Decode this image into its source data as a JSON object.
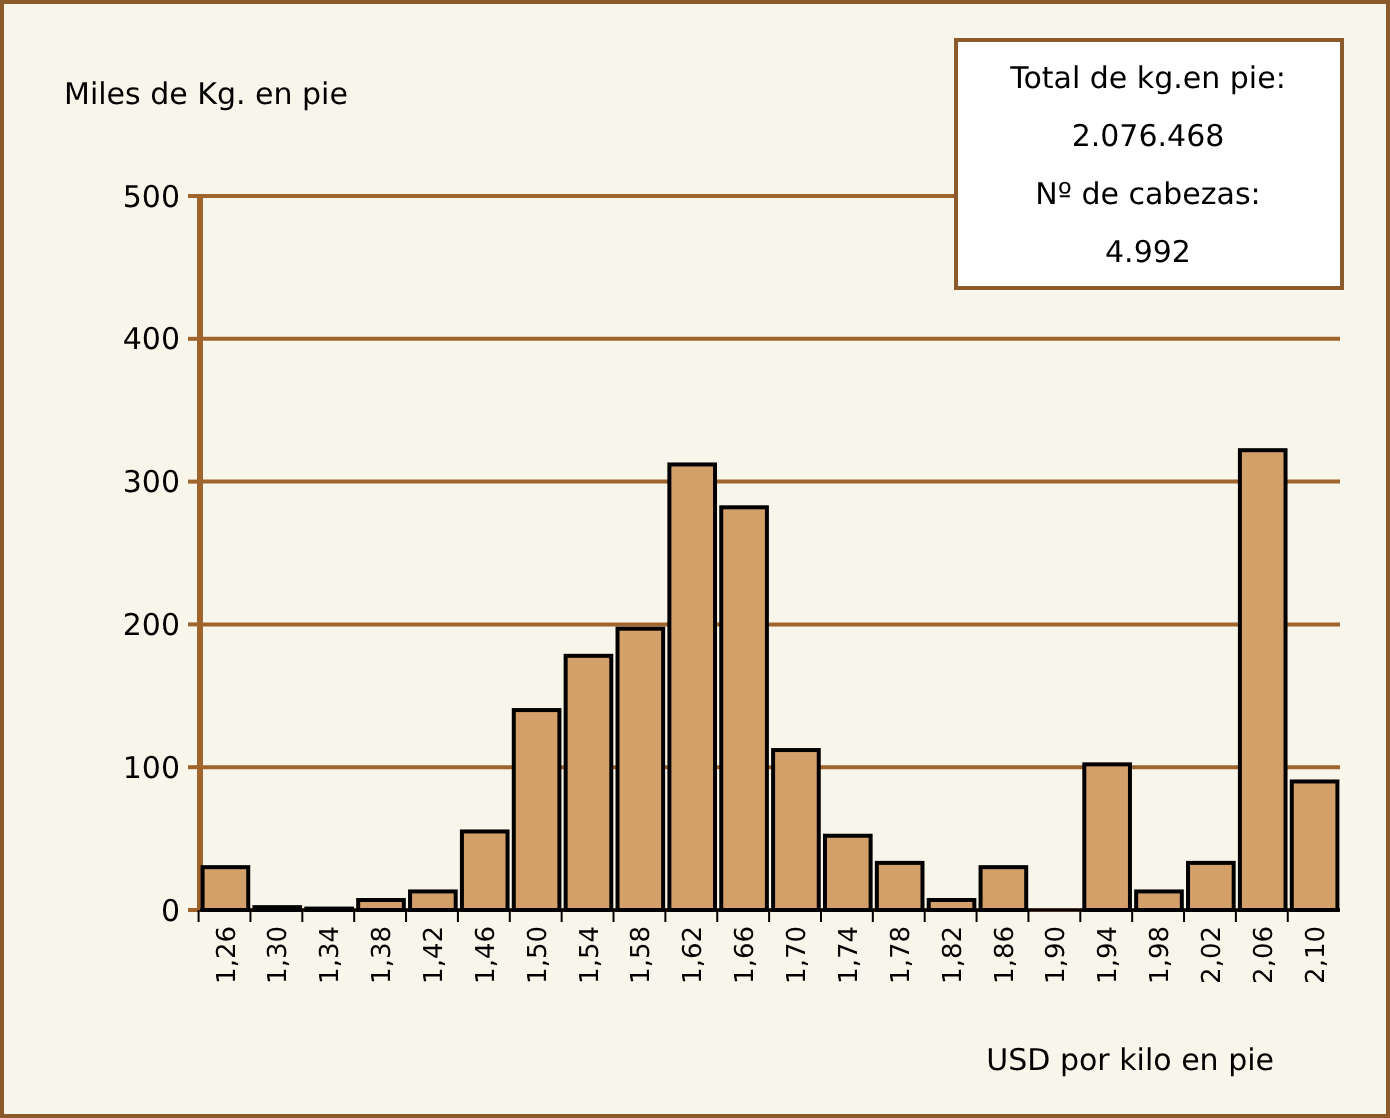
{
  "chart_data": {
    "type": "bar",
    "ylabel": "Miles de Kg. en pie",
    "xlabel": "USD por kilo en pie",
    "categories": [
      "1,26",
      "1,30",
      "1,34",
      "1,38",
      "1,42",
      "1,46",
      "1,50",
      "1,54",
      "1,58",
      "1,62",
      "1,66",
      "1,70",
      "1,74",
      "1,78",
      "1,82",
      "1,86",
      "1,90",
      "1,94",
      "1,98",
      "2,02",
      "2,06",
      "2,10"
    ],
    "values": [
      30,
      2,
      1,
      7,
      13,
      55,
      140,
      178,
      197,
      312,
      282,
      112,
      52,
      33,
      7,
      30,
      0,
      102,
      13,
      33,
      322,
      90
    ],
    "color": "#d4a06a",
    "ylim": [
      0,
      500
    ],
    "yticks": [
      0,
      100,
      200,
      300,
      400,
      500
    ],
    "grid": "y",
    "annotations": [
      "Total de kg.en pie:",
      "2.076.468",
      "Nº de cabezas:",
      "4.992"
    ]
  }
}
